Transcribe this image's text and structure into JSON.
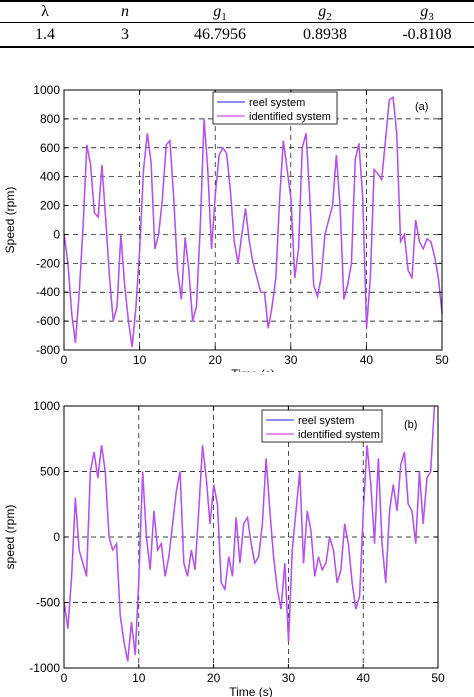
{
  "table": {
    "headers": [
      "λ",
      "n",
      "g1",
      "g2",
      "g3"
    ],
    "header_base": [
      "λ",
      "n",
      "g",
      "g",
      "g"
    ],
    "header_sub": [
      "",
      "",
      "1",
      "2",
      "3"
    ],
    "values": [
      "1.4",
      "3",
      "46.7956",
      "0.8938",
      "-0.8108"
    ]
  },
  "chart_data": [
    {
      "type": "line",
      "panel_label": "(a)",
      "xlabel": "Time (s)",
      "ylabel": "Speed (rpm)",
      "xlim": [
        0,
        50
      ],
      "ylim": [
        -800,
        1000
      ],
      "xticks": [
        0,
        10,
        20,
        30,
        40,
        50
      ],
      "yticks": [
        -800,
        -600,
        -400,
        -200,
        0,
        200,
        400,
        600,
        800,
        1000
      ],
      "grid": true,
      "legend": "top-center",
      "series": [
        {
          "name": "reel system",
          "color": "#4a4aff"
        },
        {
          "name": "identified system",
          "color": "#d24de6"
        }
      ],
      "x": [
        0,
        0.5,
        1,
        1.5,
        2,
        2.5,
        3,
        3.5,
        4,
        4.5,
        5,
        5.5,
        6,
        6.5,
        7,
        7.5,
        8,
        8.5,
        9,
        9.5,
        10,
        10.5,
        11,
        11.5,
        12,
        12.5,
        13,
        13.5,
        14,
        14.5,
        15,
        15.5,
        16,
        16.5,
        17,
        17.5,
        18,
        18.5,
        19,
        19.5,
        20,
        20.5,
        21,
        21.5,
        22,
        22.5,
        23,
        23.5,
        24,
        24.5,
        25,
        25.5,
        26,
        26.5,
        27,
        27.5,
        28,
        28.5,
        29,
        29.5,
        30,
        30.5,
        31,
        31.5,
        32,
        32.5,
        33,
        33.5,
        34,
        34.5,
        35,
        35.5,
        36,
        36.5,
        37,
        37.5,
        38,
        38.5,
        39,
        39.5,
        40,
        40.5,
        41,
        41.5,
        42,
        42.5,
        43,
        43.5,
        44,
        44.5,
        45,
        45.5,
        46,
        46.5,
        47,
        47.5,
        48,
        48.5,
        49,
        49.5,
        50
      ],
      "values": [
        0,
        -200,
        -550,
        -750,
        -400,
        50,
        620,
        480,
        150,
        120,
        480,
        100,
        -300,
        -600,
        -500,
        0,
        -350,
        -600,
        -780,
        -500,
        -100,
        450,
        700,
        500,
        -100,
        0,
        250,
        620,
        650,
        250,
        -250,
        -450,
        -20,
        -250,
        -600,
        -500,
        50,
        800,
        450,
        -100,
        280,
        550,
        600,
        560,
        300,
        -50,
        -200,
        0,
        180,
        -50,
        -200,
        -300,
        -400,
        -400,
        -650,
        -500,
        -300,
        250,
        650,
        450,
        250,
        -300,
        -100,
        600,
        700,
        250,
        -350,
        -430,
        -300,
        0,
        100,
        200,
        550,
        200,
        -450,
        -350,
        -200,
        520,
        630,
        250,
        -650,
        -300,
        450,
        420,
        380,
        650,
        930,
        950,
        700,
        -50,
        0,
        -250,
        -300,
        100,
        -50,
        -100,
        -30,
        -50,
        -150,
        -300,
        -550
      ]
    },
    {
      "type": "line",
      "panel_label": "(b)",
      "xlabel": "Time (s)",
      "ylabel": "speed (rpm)",
      "xlim": [
        0,
        50
      ],
      "ylim": [
        -1000,
        1000
      ],
      "xticks": [
        0,
        10,
        20,
        30,
        40,
        50
      ],
      "yticks": [
        -1000,
        -500,
        0,
        500,
        1000
      ],
      "grid": true,
      "legend": "top-center",
      "series": [
        {
          "name": "reel system",
          "color": "#4a4aff"
        },
        {
          "name": "identified system",
          "color": "#d24de6"
        }
      ],
      "x": [
        0,
        0.5,
        1,
        1.5,
        2,
        2.5,
        3,
        3.5,
        4,
        4.5,
        5,
        5.5,
        6,
        6.5,
        7,
        7.5,
        8,
        8.5,
        9,
        9.5,
        10,
        10.5,
        11,
        11.5,
        12,
        12.5,
        13,
        13.5,
        14,
        14.5,
        15,
        15.5,
        16,
        16.5,
        17,
        17.5,
        18,
        18.5,
        19,
        19.5,
        20,
        20.5,
        21,
        21.5,
        22,
        22.5,
        23,
        23.5,
        24,
        24.5,
        25,
        25.5,
        26,
        26.5,
        27,
        27.5,
        28,
        28.5,
        29,
        29.5,
        30,
        30.5,
        31,
        31.5,
        32,
        32.5,
        33,
        33.5,
        34,
        34.5,
        35,
        35.5,
        36,
        36.5,
        37,
        37.5,
        38,
        38.5,
        39,
        39.5,
        40,
        40.5,
        41,
        41.5,
        42,
        42.5,
        43,
        43.5,
        44,
        44.5,
        45,
        45.5,
        46,
        46.5,
        47,
        47.5,
        48,
        48.5,
        49,
        49.5,
        50
      ],
      "values": [
        -500,
        -700,
        -300,
        300,
        -100,
        -200,
        -300,
        500,
        650,
        450,
        700,
        500,
        0,
        -100,
        -50,
        -600,
        -800,
        -950,
        -650,
        -900,
        -300,
        500,
        0,
        -250,
        200,
        -100,
        -50,
        -300,
        -150,
        100,
        350,
        500,
        -200,
        -300,
        -100,
        -250,
        200,
        700,
        450,
        100,
        400,
        250,
        -350,
        -400,
        -150,
        -300,
        150,
        -200,
        100,
        150,
        -50,
        -200,
        -150,
        100,
        600,
        200,
        -150,
        -400,
        -550,
        -200,
        -800,
        -100,
        200,
        500,
        -200,
        200,
        50,
        -300,
        -150,
        -250,
        -200,
        0,
        -100,
        -350,
        -250,
        100,
        -50,
        -350,
        -550,
        -450,
        200,
        700,
        400,
        -50,
        600,
        -50,
        -350,
        200,
        400,
        200,
        550,
        650,
        250,
        200,
        -50,
        500,
        100,
        450,
        500,
        1000,
        1000
      ]
    }
  ]
}
